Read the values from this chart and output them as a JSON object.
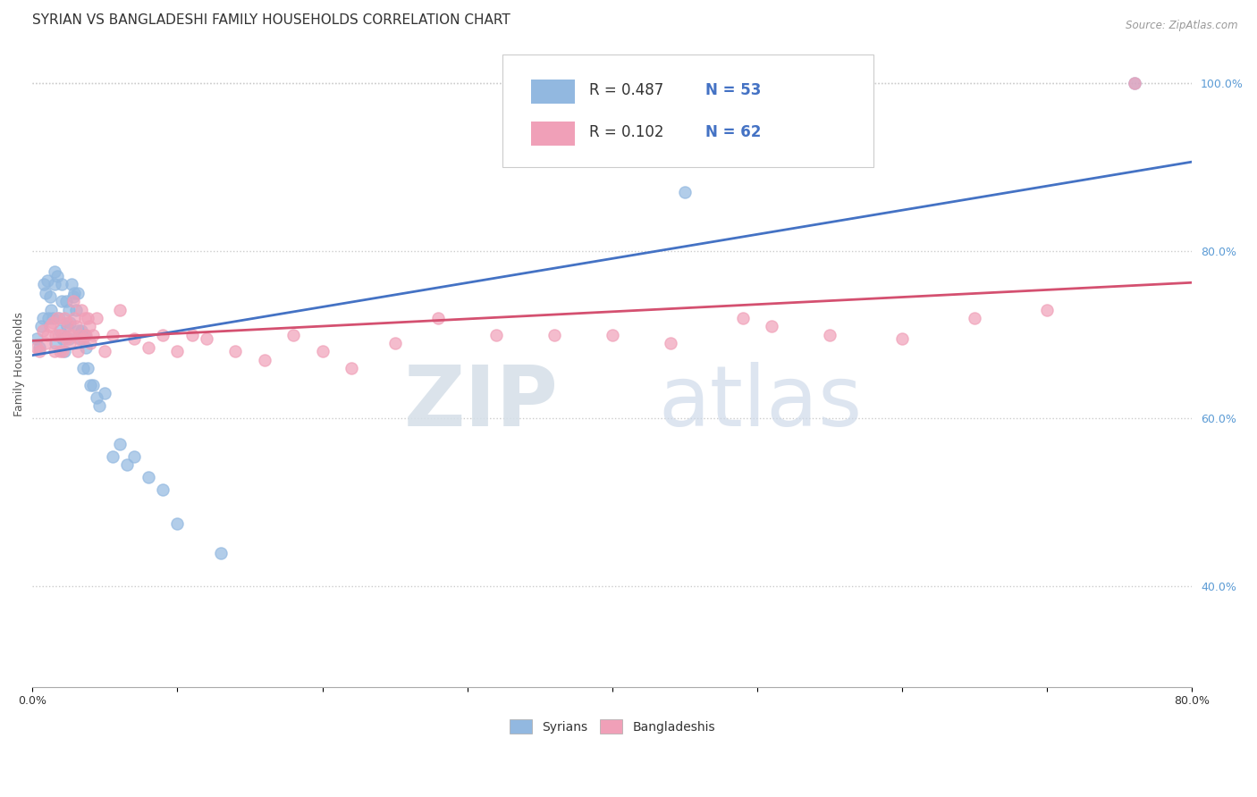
{
  "title": "SYRIAN VS BANGLADESHI FAMILY HOUSEHOLDS CORRELATION CHART",
  "source": "Source: ZipAtlas.com",
  "ylabel": "Family Households",
  "xlim": [
    0.0,
    0.8
  ],
  "ylim": [
    0.28,
    1.05
  ],
  "x_ticks": [
    0.0,
    0.1,
    0.2,
    0.3,
    0.4,
    0.5,
    0.6,
    0.7,
    0.8
  ],
  "x_tick_labels": [
    "0.0%",
    "",
    "",
    "",
    "",
    "",
    "",
    "",
    "80.0%"
  ],
  "y_ticks_right": [
    0.4,
    0.6,
    0.8,
    1.0
  ],
  "y_tick_labels_right": [
    "40.0%",
    "60.0%",
    "80.0%",
    "100.0%"
  ],
  "watermark_zip": "ZIP",
  "watermark_atlas": "atlas",
  "legend_r1": "0.487",
  "legend_n1": "53",
  "legend_r2": "0.102",
  "legend_n2": "62",
  "syrian_color": "#92b8e0",
  "bangladeshi_color": "#f0a0b8",
  "syrian_line_color": "#4472c4",
  "bangladeshi_line_color": "#d45070",
  "background_color": "#ffffff",
  "syrians_label": "Syrians",
  "bangladeshis_label": "Bangladeshis",
  "syrian_x": [
    0.003,
    0.005,
    0.006,
    0.007,
    0.008,
    0.009,
    0.01,
    0.011,
    0.012,
    0.013,
    0.014,
    0.015,
    0.015,
    0.016,
    0.017,
    0.018,
    0.019,
    0.02,
    0.02,
    0.021,
    0.022,
    0.023,
    0.024,
    0.025,
    0.025,
    0.026,
    0.027,
    0.028,
    0.029,
    0.03,
    0.031,
    0.032,
    0.033,
    0.034,
    0.035,
    0.036,
    0.037,
    0.038,
    0.04,
    0.042,
    0.044,
    0.046,
    0.05,
    0.055,
    0.06,
    0.065,
    0.07,
    0.08,
    0.09,
    0.1,
    0.13,
    0.45,
    0.76
  ],
  "syrian_y": [
    0.695,
    0.685,
    0.71,
    0.72,
    0.76,
    0.75,
    0.765,
    0.72,
    0.745,
    0.73,
    0.72,
    0.76,
    0.775,
    0.69,
    0.77,
    0.72,
    0.705,
    0.76,
    0.74,
    0.695,
    0.68,
    0.74,
    0.71,
    0.73,
    0.695,
    0.715,
    0.76,
    0.745,
    0.75,
    0.73,
    0.75,
    0.705,
    0.695,
    0.705,
    0.66,
    0.7,
    0.685,
    0.66,
    0.64,
    0.64,
    0.625,
    0.615,
    0.63,
    0.555,
    0.57,
    0.545,
    0.555,
    0.53,
    0.515,
    0.475,
    0.44,
    0.87,
    1.0
  ],
  "bangladeshi_x": [
    0.003,
    0.005,
    0.007,
    0.009,
    0.01,
    0.012,
    0.014,
    0.015,
    0.016,
    0.017,
    0.018,
    0.019,
    0.02,
    0.021,
    0.022,
    0.023,
    0.024,
    0.025,
    0.026,
    0.027,
    0.028,
    0.029,
    0.03,
    0.031,
    0.032,
    0.033,
    0.034,
    0.035,
    0.036,
    0.037,
    0.038,
    0.039,
    0.04,
    0.042,
    0.044,
    0.05,
    0.055,
    0.06,
    0.07,
    0.08,
    0.09,
    0.1,
    0.11,
    0.12,
    0.14,
    0.16,
    0.18,
    0.2,
    0.22,
    0.25,
    0.28,
    0.32,
    0.36,
    0.4,
    0.44,
    0.49,
    0.51,
    0.55,
    0.6,
    0.65,
    0.7,
    0.76
  ],
  "bangladeshi_y": [
    0.685,
    0.68,
    0.705,
    0.69,
    0.7,
    0.71,
    0.715,
    0.68,
    0.7,
    0.72,
    0.7,
    0.68,
    0.7,
    0.68,
    0.72,
    0.695,
    0.715,
    0.7,
    0.69,
    0.7,
    0.74,
    0.72,
    0.71,
    0.68,
    0.695,
    0.7,
    0.73,
    0.695,
    0.72,
    0.7,
    0.72,
    0.71,
    0.69,
    0.7,
    0.72,
    0.68,
    0.7,
    0.73,
    0.695,
    0.685,
    0.7,
    0.68,
    0.7,
    0.695,
    0.68,
    0.67,
    0.7,
    0.68,
    0.66,
    0.69,
    0.72,
    0.7,
    0.7,
    0.7,
    0.69,
    0.72,
    0.71,
    0.7,
    0.695,
    0.72,
    0.73,
    1.0
  ],
  "title_fontsize": 11,
  "axis_label_fontsize": 9,
  "tick_fontsize": 9,
  "legend_fontsize": 12
}
